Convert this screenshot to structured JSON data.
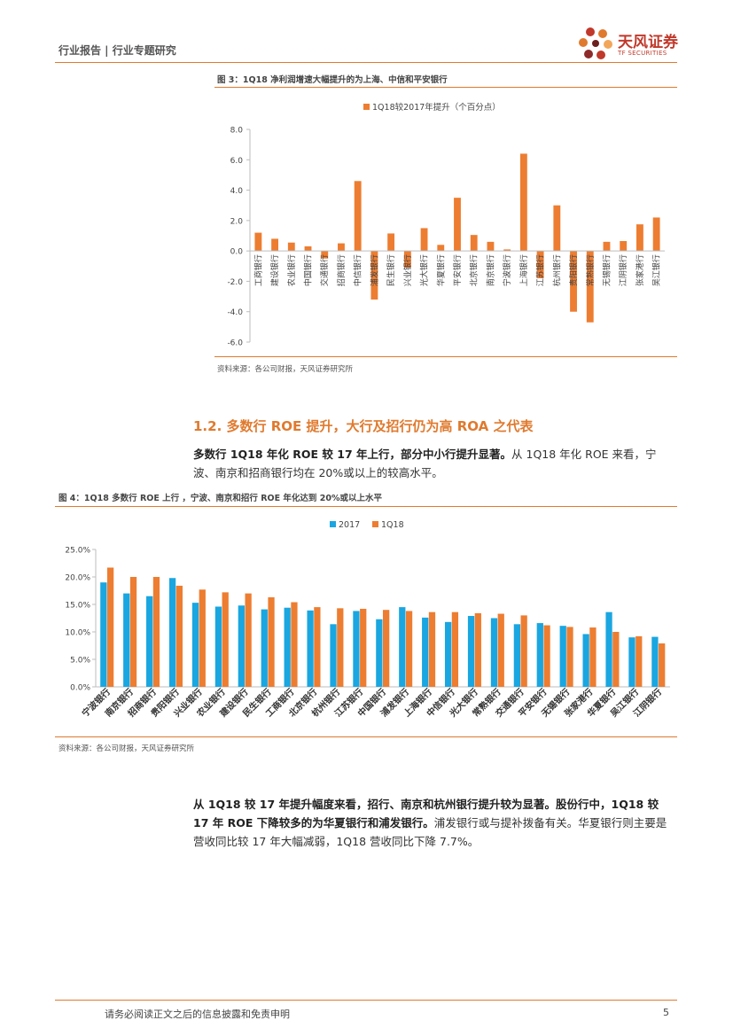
{
  "header": {
    "left_text": "行业报告 | 行业专题研究",
    "logo_cn": "天风证券",
    "logo_en": "TF SECURITIES"
  },
  "figure3": {
    "title": "图 3：1Q18 净利润增速大幅提升的为上海、中信和平安银行",
    "source": "资料来源：各公司财报，天风证券研究所"
  },
  "section": {
    "heading": "1.2. 多数行 ROE 提升，大行及招行仍为高 ROA 之代表",
    "para1_bold": "多数行 1Q18 年化 ROE 较 17 年上行，部分中小行提升显著。",
    "para1_rest": "从 1Q18 年化 ROE 来看，宁波、南京和招商银行均在 20%或以上的较高水平。"
  },
  "figure4": {
    "title": "图 4：1Q18 多数行 ROE 上行 ，宁波、南京和招行 ROE 年化达到 20%或以上水平",
    "source": "资料来源：各公司财报，天风证券研究所"
  },
  "para2": {
    "bold": "从 1Q18 较 17 年提升幅度来看，招行、南京和杭州银行提升较为显著。股份行中，1Q18 较 17 年 ROE 下降较多的为华夏银行和浦发银行。",
    "rest": "浦发银行或与提补拨备有关。华夏银行则主要是营收同比较 17 年大幅减弱，1Q18 营收同比下降 7.7%。"
  },
  "footer": {
    "disclaimer": "请务必阅读正文之后的信息披露和免责申明",
    "page": "5"
  },
  "chart_data": [
    {
      "type": "bar",
      "title": "图 3：1Q18 净利润增速大幅提升的为上海、中信和平安银行",
      "legend": [
        "1Q18较2017年提升（个百分点）"
      ],
      "categories": [
        "工商银行",
        "建设银行",
        "农业银行",
        "中国银行",
        "交通银行",
        "招商银行",
        "中信银行",
        "浦发银行",
        "民生银行",
        "兴业银行",
        "光大银行",
        "华夏银行",
        "平安银行",
        "北京银行",
        "南京银行",
        "宁波银行",
        "上海银行",
        "江苏银行",
        "杭州银行",
        "贵阳银行",
        "常熟银行",
        "无锡银行",
        "江阴银行",
        "张家港行",
        "吴江银行"
      ],
      "series": [
        {
          "name": "1Q18较2017年提升（个百分点）",
          "color": "#ed7d31",
          "values": [
            1.2,
            0.8,
            0.55,
            0.3,
            -0.5,
            0.5,
            4.6,
            -3.2,
            1.15,
            -1.1,
            1.5,
            0.4,
            3.5,
            1.05,
            0.6,
            0.1,
            6.4,
            -1.8,
            3.0,
            -4.0,
            -4.7,
            0.6,
            0.65,
            1.75,
            2.2
          ]
        }
      ],
      "yticks": [
        "8.0",
        "6.0",
        "4.0",
        "2.0",
        "0.0",
        "-2.0",
        "-4.0",
        "-6.0"
      ],
      "ylim": [
        -6,
        8
      ]
    },
    {
      "type": "bar",
      "title": "图 4：1Q18 多数行 ROE 上行 ，宁波、南京和招行 ROE 年化达到 20%或以上水平",
      "legend": [
        "2017",
        "1Q18"
      ],
      "categories": [
        "宁波银行",
        "南京银行",
        "招商银行",
        "贵阳银行",
        "兴业银行",
        "农业银行",
        "建设银行",
        "民生银行",
        "工商银行",
        "北京银行",
        "杭州银行",
        "江苏银行",
        "中国银行",
        "浦发银行",
        "上海银行",
        "中信银行",
        "光大银行",
        "常熟银行",
        "交通银行",
        "平安银行",
        "无锡银行",
        "张家港行",
        "华夏银行",
        "吴江银行",
        "江阴银行"
      ],
      "series": [
        {
          "name": "2017",
          "color": "#1aa6e0",
          "values": [
            19.0,
            17.0,
            16.5,
            19.8,
            15.3,
            14.6,
            14.8,
            14.1,
            14.4,
            13.9,
            11.4,
            13.8,
            12.3,
            14.5,
            12.6,
            11.8,
            12.9,
            12.5,
            11.4,
            11.6,
            11.1,
            9.6,
            13.6,
            9.0,
            9.1
          ]
        },
        {
          "name": "1Q18",
          "color": "#ed7d31",
          "values": [
            21.7,
            20.0,
            20.0,
            18.4,
            17.7,
            17.2,
            17.0,
            16.3,
            15.4,
            14.5,
            14.3,
            14.2,
            14.0,
            13.8,
            13.6,
            13.6,
            13.4,
            13.3,
            13.0,
            11.2,
            10.9,
            10.8,
            10.0,
            9.2,
            7.9
          ]
        }
      ],
      "yticks": [
        "25.0%",
        "20.0%",
        "15.0%",
        "10.0%",
        "5.0%",
        "0.0%"
      ],
      "ylim": [
        0,
        25
      ]
    }
  ]
}
